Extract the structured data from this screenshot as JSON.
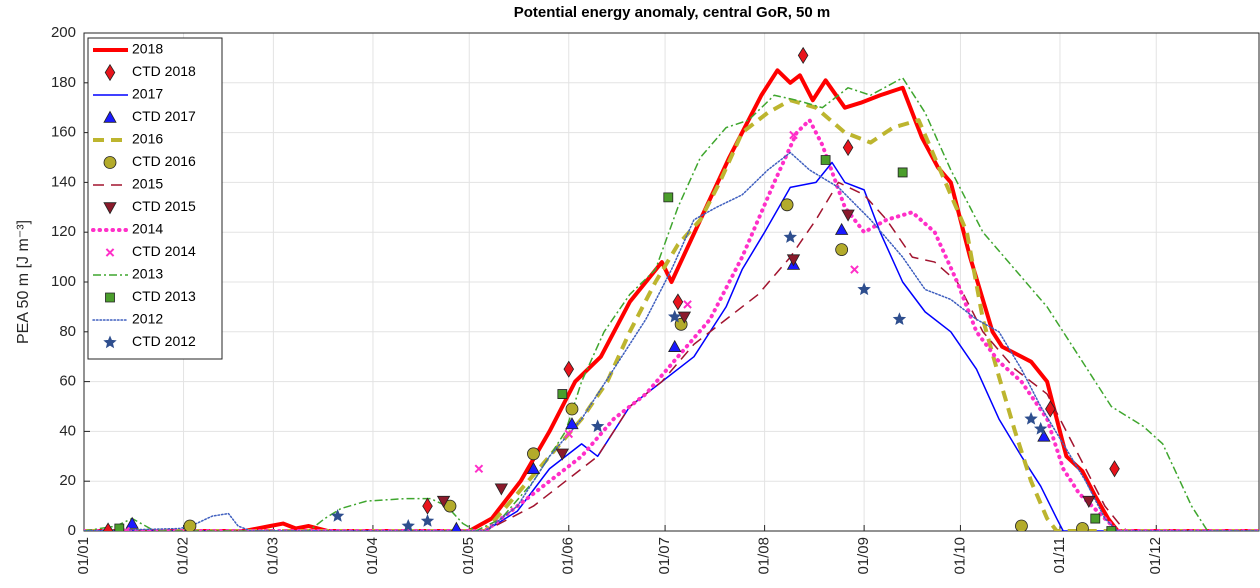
{
  "chart_data": {
    "type": "line",
    "title": "Potential energy anomaly, central GoR, 50 m",
    "ylabel": "PEA 50 m [J m⁻³]",
    "xlim": [
      0,
      366
    ],
    "ylim": [
      0,
      200
    ],
    "xticks": [
      {
        "value": 0,
        "label": "01/01"
      },
      {
        "value": 31,
        "label": "01/02"
      },
      {
        "value": 59,
        "label": "01/03"
      },
      {
        "value": 90,
        "label": "01/04"
      },
      {
        "value": 120,
        "label": "01/05"
      },
      {
        "value": 151,
        "label": "01/06"
      },
      {
        "value": 181,
        "label": "01/07"
      },
      {
        "value": 212,
        "label": "01/08"
      },
      {
        "value": 243,
        "label": "01/09"
      },
      {
        "value": 273,
        "label": "01/10"
      },
      {
        "value": 304,
        "label": "01/11"
      },
      {
        "value": 334,
        "label": "01/12"
      }
    ],
    "yticks": [
      0,
      20,
      40,
      60,
      80,
      100,
      120,
      140,
      160,
      180,
      200
    ],
    "grid": true,
    "legend": "upper left",
    "series": [
      {
        "name": "2018",
        "kind": "line",
        "color": "#ff0000",
        "style": "solid",
        "weight": "thick",
        "x": [
          0,
          50,
          58,
          62,
          66,
          70,
          76,
          120,
          127,
          136,
          145,
          153,
          161,
          170,
          180,
          183,
          192,
          201,
          211,
          216,
          220,
          223,
          227,
          231,
          237,
          242,
          248,
          255,
          261,
          266,
          270,
          276,
          283,
          286,
          295,
          300,
          303,
          306,
          311,
          315,
          319,
          322,
          366
        ],
        "values": [
          0,
          0,
          2,
          3,
          1,
          2,
          0,
          0,
          5,
          20,
          40,
          60,
          70,
          92,
          108,
          100,
          125,
          150,
          175,
          185,
          180,
          183,
          173,
          181,
          170,
          172,
          175,
          178,
          158,
          146,
          140,
          110,
          80,
          74,
          68,
          60,
          45,
          30,
          24,
          14,
          5,
          0,
          0
        ]
      },
      {
        "name": "CTD 2018",
        "kind": "scatter",
        "color": "#e8141c",
        "marker": "diamond",
        "x": [
          7.5,
          107,
          151,
          185,
          224,
          238,
          301,
          321
        ],
        "values": [
          0,
          10,
          65,
          92,
          191,
          154,
          49,
          25
        ]
      },
      {
        "name": "2017",
        "kind": "line",
        "color": "#0000ff",
        "style": "solid",
        "weight": "thin",
        "x": [
          0,
          125,
          135,
          145,
          155,
          160,
          170,
          180,
          190,
          200,
          205,
          212,
          220,
          228,
          233,
          237,
          243,
          248,
          255,
          262,
          270,
          278,
          285,
          292,
          298,
          303,
          305,
          366
        ],
        "values": [
          0,
          0,
          8,
          25,
          35,
          30,
          50,
          60,
          70,
          90,
          105,
          120,
          138,
          140,
          148,
          140,
          137,
          120,
          100,
          88,
          80,
          65,
          45,
          30,
          18,
          5,
          0,
          0
        ]
      },
      {
        "name": "CTD 2017",
        "kind": "scatter",
        "color": "#1a1aff",
        "marker": "triangle-up",
        "x": [
          15,
          116,
          140,
          152,
          184,
          221,
          236,
          299
        ],
        "values": [
          3,
          1,
          25,
          43,
          74,
          107,
          121,
          38
        ]
      },
      {
        "name": "2016",
        "kind": "line",
        "color": "#bdb52f",
        "style": "dashed",
        "weight": "thick",
        "x": [
          0,
          125,
          135,
          145,
          155,
          163,
          170,
          178,
          185,
          192,
          198,
          205,
          213,
          220,
          228,
          237,
          245,
          252,
          260,
          265,
          270,
          275,
          280,
          285,
          290,
          295,
          300,
          303,
          366
        ],
        "values": [
          0,
          0,
          15,
          30,
          45,
          60,
          80,
          100,
          115,
          125,
          140,
          160,
          168,
          173,
          170,
          160,
          156,
          162,
          165,
          150,
          135,
          120,
          85,
          62,
          40,
          20,
          5,
          0,
          0
        ]
      },
      {
        "name": "CTD 2016",
        "kind": "scatter",
        "color": "#b3ab2b",
        "marker": "circle",
        "x": [
          33,
          114,
          140,
          152,
          186,
          219,
          236,
          292,
          311
        ],
        "values": [
          2,
          10,
          31,
          49,
          83,
          131,
          113,
          2,
          1
        ]
      },
      {
        "name": "2015",
        "kind": "line",
        "color": "#a2142f",
        "style": "dashed",
        "weight": "thin",
        "x": [
          0,
          125,
          140,
          150,
          160,
          170,
          180,
          190,
          200,
          210,
          220,
          228,
          235,
          243,
          250,
          258,
          265,
          272,
          280,
          290,
          300,
          310,
          318,
          323,
          325,
          366
        ],
        "values": [
          0,
          0,
          10,
          20,
          30,
          50,
          60,
          75,
          85,
          95,
          110,
          125,
          140,
          135,
          125,
          110,
          108,
          100,
          80,
          65,
          55,
          30,
          10,
          2,
          0,
          0
        ]
      },
      {
        "name": "CTD 2015",
        "kind": "scatter",
        "color": "#8b1a2b",
        "marker": "triangle-down",
        "x": [
          112,
          130,
          149,
          187,
          221,
          238,
          313
        ],
        "values": [
          12,
          17,
          31,
          86,
          109,
          127,
          12
        ]
      },
      {
        "name": "2014",
        "kind": "line",
        "color": "#ff2fc8",
        "style": "dotted",
        "weight": "thick",
        "x": [
          0,
          125,
          135,
          145,
          155,
          165,
          175,
          185,
          195,
          205,
          215,
          222,
          226,
          230,
          237,
          243,
          250,
          258,
          265,
          272,
          278,
          285,
          292,
          300,
          305,
          310,
          318,
          322,
          366
        ],
        "values": [
          0,
          0,
          10,
          20,
          30,
          45,
          55,
          70,
          85,
          110,
          140,
          160,
          165,
          155,
          130,
          120,
          125,
          128,
          120,
          100,
          80,
          68,
          60,
          45,
          25,
          15,
          5,
          0,
          0
        ]
      },
      {
        "name": "CTD 2014",
        "kind": "scatter",
        "color": "#ff2fc8",
        "marker": "x",
        "x": [
          13,
          123,
          151,
          188,
          221,
          240
        ],
        "values": [
          0,
          25,
          39,
          91,
          159,
          105
        ]
      },
      {
        "name": "2013",
        "kind": "line",
        "color": "#3fa62e",
        "style": "dashdot",
        "weight": "thin",
        "x": [
          0,
          10,
          15,
          22,
          70,
          75,
          80,
          88,
          100,
          108,
          113,
          118,
          122,
          130,
          140,
          150,
          155,
          162,
          170,
          178,
          185,
          192,
          200,
          207,
          215,
          222,
          230,
          238,
          245,
          255,
          262,
          270,
          280,
          290,
          300,
          310,
          320,
          330,
          336,
          345,
          350,
          366
        ],
        "values": [
          0,
          2,
          5,
          0,
          0,
          5,
          9,
          12,
          13,
          13,
          10,
          3,
          0,
          5,
          20,
          40,
          60,
          80,
          95,
          105,
          130,
          150,
          162,
          165,
          175,
          173,
          170,
          178,
          175,
          182,
          168,
          145,
          120,
          105,
          90,
          70,
          50,
          42,
          35,
          10,
          0,
          0
        ]
      },
      {
        "name": "CTD 2013",
        "kind": "scatter",
        "color": "#4b9e2c",
        "marker": "square",
        "x": [
          11,
          149,
          182,
          231,
          255,
          315,
          320
        ],
        "values": [
          1,
          55,
          134,
          149,
          144,
          5,
          0
        ]
      },
      {
        "name": "2012",
        "kind": "line",
        "color": "#3f5fbf",
        "style": "dotted",
        "weight": "thin",
        "x": [
          0,
          30,
          35,
          40,
          45,
          48,
          52,
          125,
          135,
          145,
          155,
          165,
          175,
          183,
          190,
          197,
          205,
          213,
          220,
          226,
          235,
          245,
          255,
          262,
          270,
          278,
          285,
          292,
          298,
          305,
          312,
          318,
          322,
          366
        ],
        "values": [
          0,
          1,
          3,
          6,
          7,
          2,
          0,
          0,
          10,
          30,
          45,
          65,
          85,
          105,
          125,
          130,
          135,
          145,
          152,
          145,
          138,
          125,
          110,
          97,
          93,
          85,
          80,
          65,
          50,
          35,
          20,
          5,
          0,
          0
        ]
      },
      {
        "name": "CTD 2012",
        "kind": "scatter",
        "color": "#2e4e8e",
        "marker": "star",
        "x": [
          79,
          101,
          107,
          160,
          184,
          220,
          243,
          254,
          295,
          298
        ],
        "values": [
          6,
          2,
          4,
          42,
          86,
          118,
          97,
          85,
          45,
          41
        ]
      }
    ]
  }
}
